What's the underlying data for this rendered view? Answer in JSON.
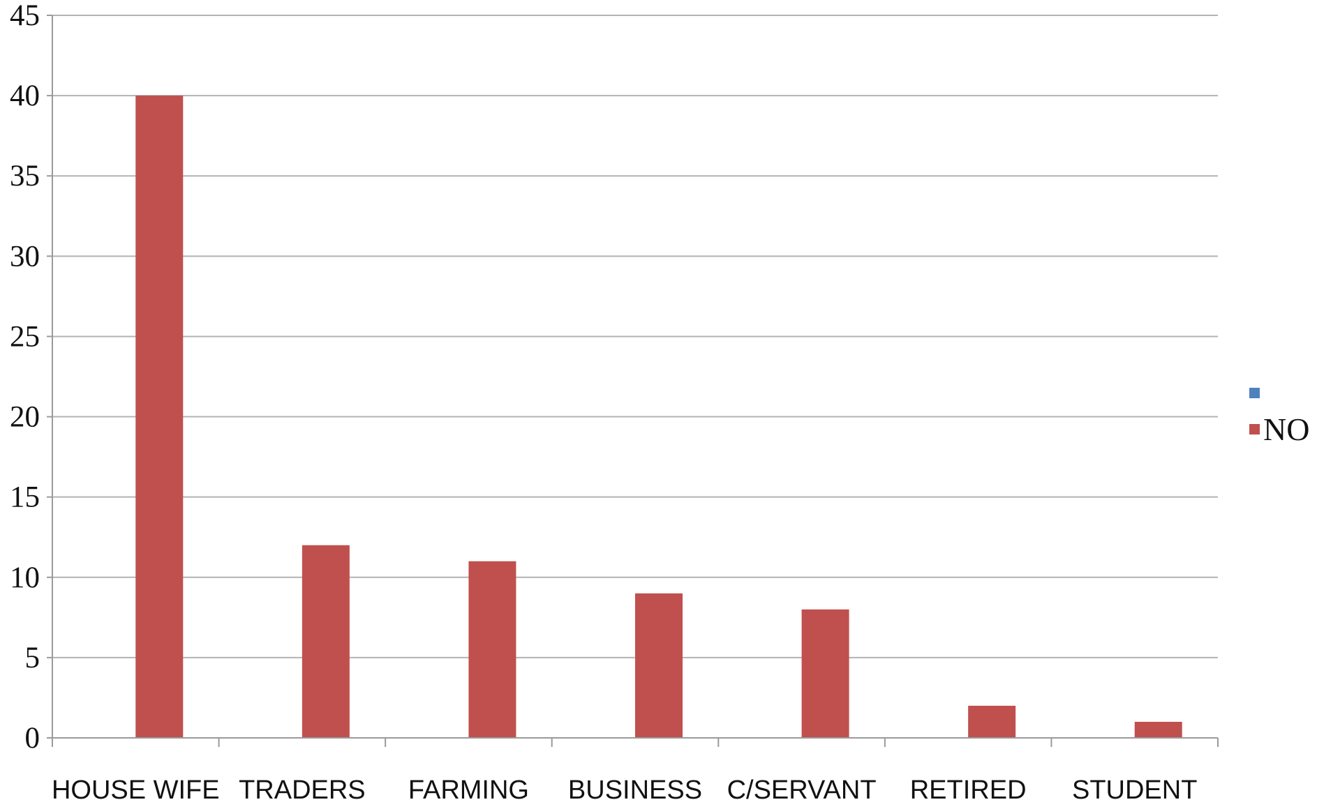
{
  "chart_data": {
    "type": "bar",
    "categories": [
      "HOUSE WIFE",
      "TRADERS",
      "FARMING",
      "BUSINESS",
      "C/SERVANT",
      "RETIRED",
      "STUDENT"
    ],
    "series": [
      {
        "name": "",
        "color": "#4f81bd",
        "values": [
          0,
          0,
          0,
          0,
          0,
          0,
          0
        ]
      },
      {
        "name": "NO",
        "color": "#c0504d",
        "values": [
          40,
          12,
          11,
          9,
          8,
          2,
          1
        ]
      }
    ],
    "title": "",
    "xlabel": "",
    "ylabel": "",
    "ylim": [
      0,
      45
    ],
    "yticks": [
      "0",
      "5",
      "10",
      "15",
      "20",
      "25",
      "30",
      "35",
      "40",
      "45"
    ],
    "grid": true,
    "legend": "right"
  }
}
